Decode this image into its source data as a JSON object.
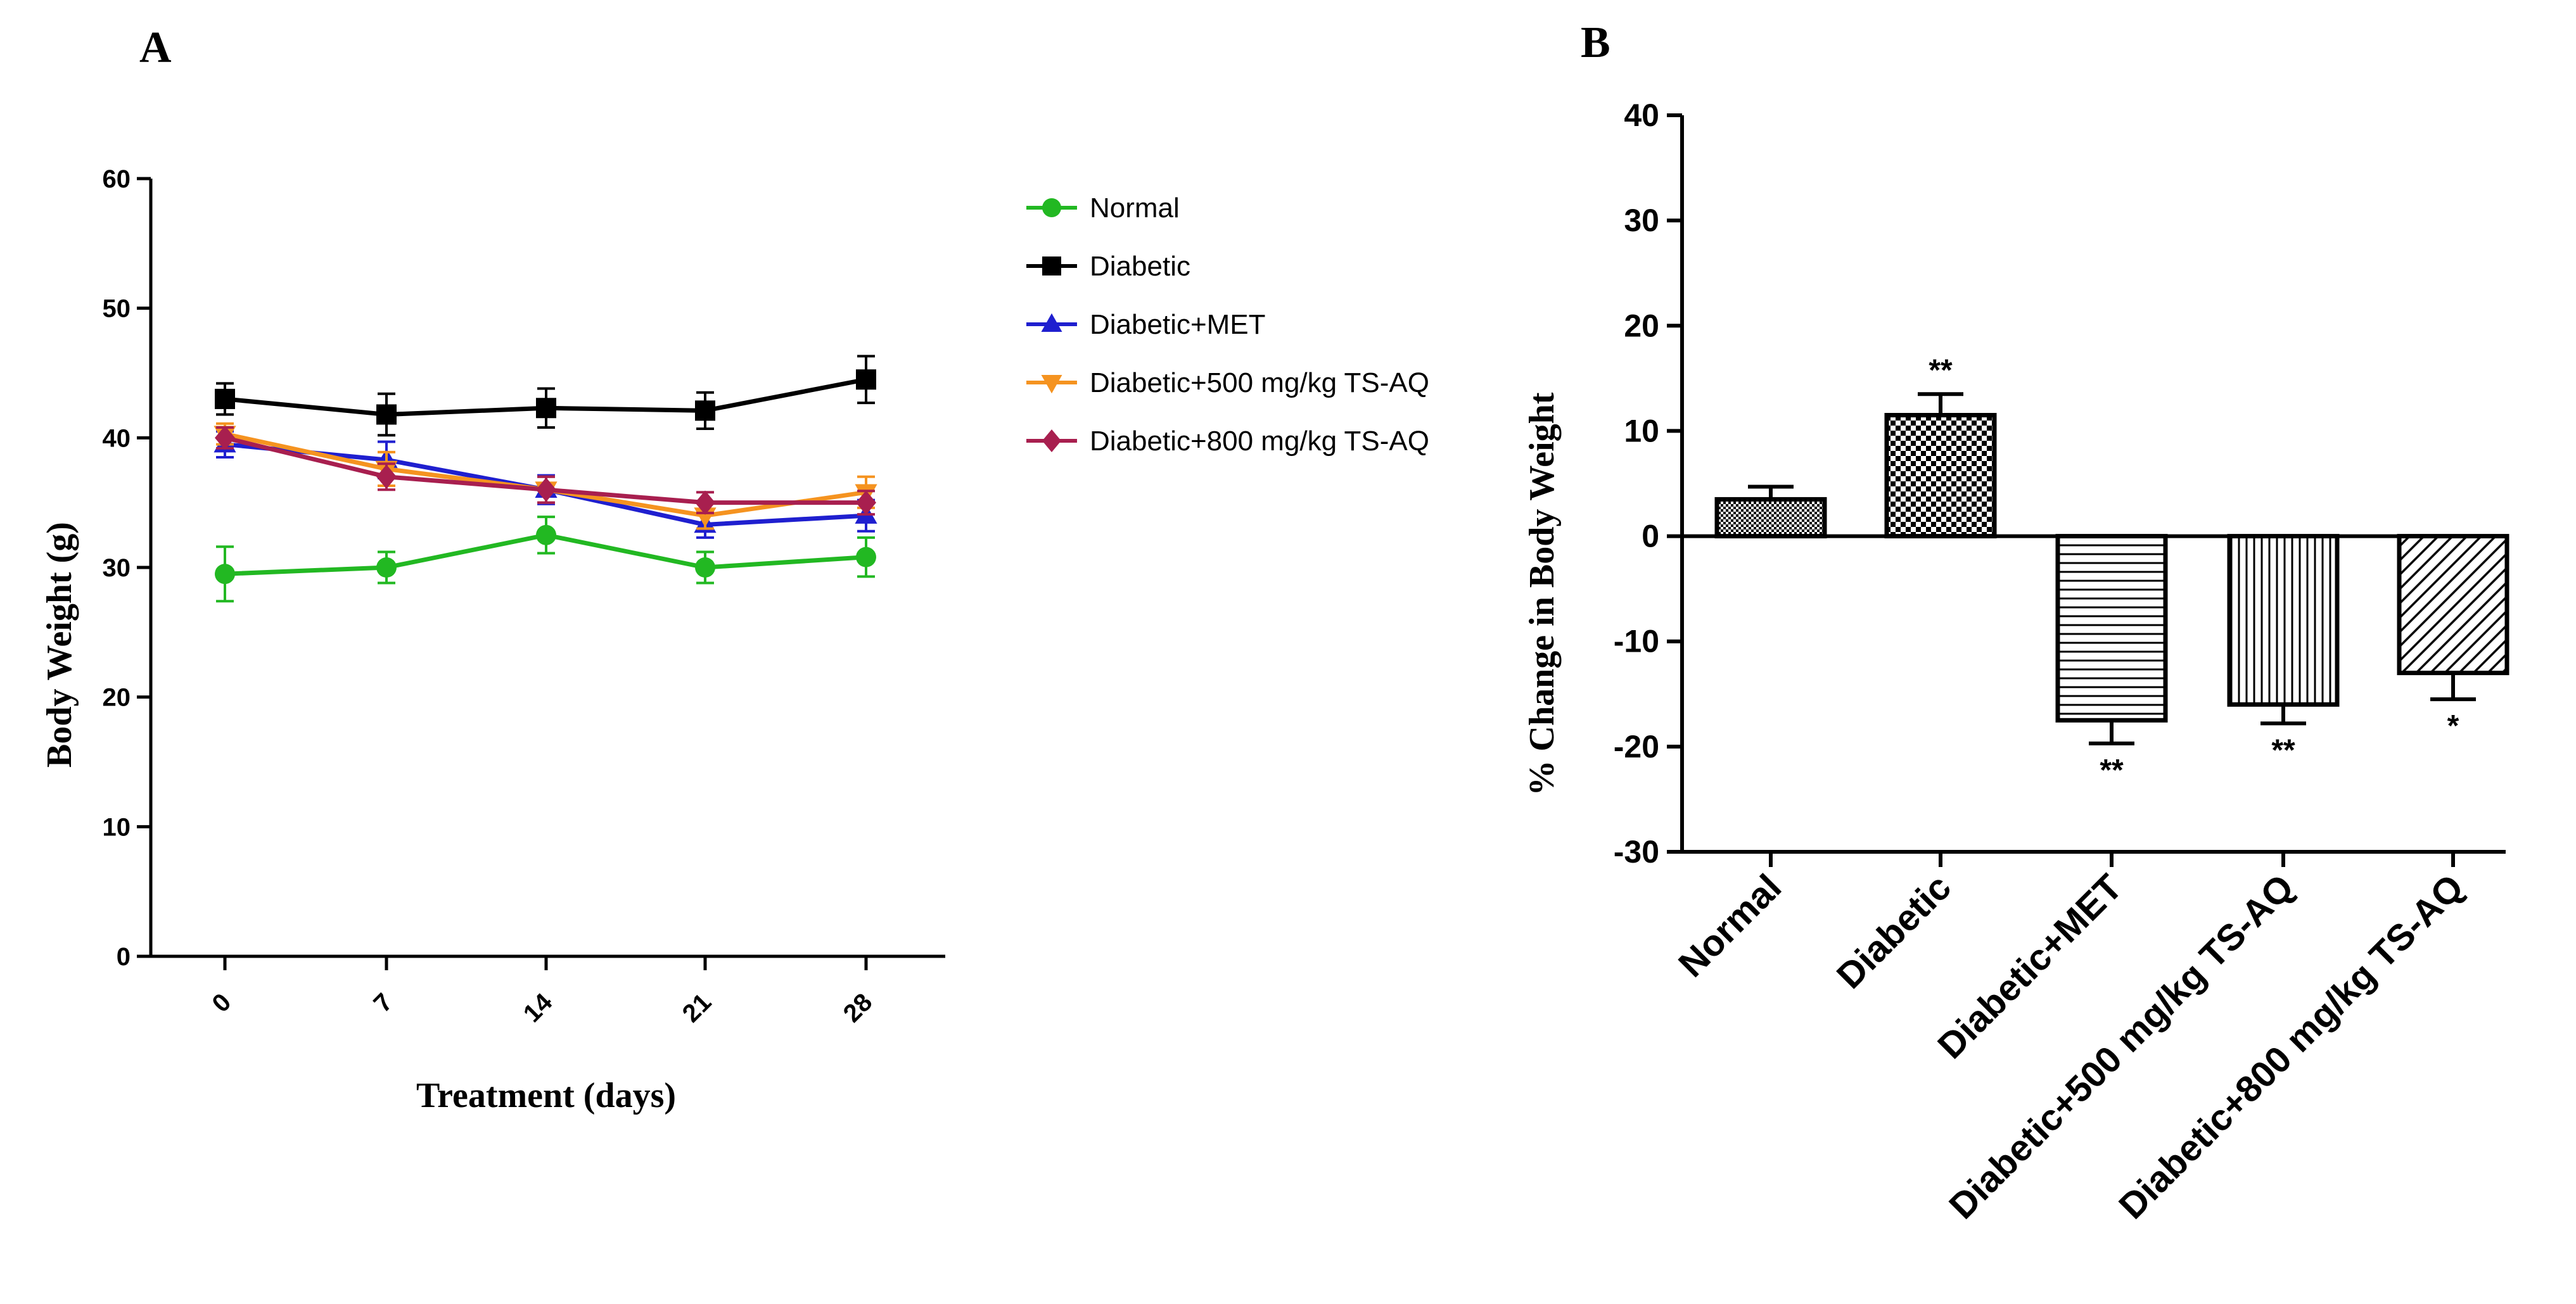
{
  "chart_data": [
    {
      "type": "line",
      "panel_label": "A",
      "title": "",
      "xlabel": "Treatment (days)",
      "ylabel": "Body Weight (g)",
      "x": [
        0,
        7,
        14,
        21,
        28
      ],
      "x_tick_labels": [
        "0",
        "7",
        "14",
        "21",
        "28"
      ],
      "ylim": [
        0,
        60
      ],
      "y_ticks": [
        0,
        10,
        20,
        30,
        40,
        50,
        60
      ],
      "grid": false,
      "legend_position": "right",
      "series": [
        {
          "name": "Normal",
          "color": "#22b822",
          "marker": "circle",
          "values": [
            29.5,
            30.0,
            32.5,
            30.0,
            30.8
          ],
          "errors": [
            2.1,
            1.2,
            1.4,
            1.2,
            1.5
          ]
        },
        {
          "name": "Diabetic",
          "color": "#000000",
          "marker": "square",
          "values": [
            43.0,
            41.8,
            42.3,
            42.1,
            44.5
          ],
          "errors": [
            1.2,
            1.6,
            1.5,
            1.4,
            1.8
          ]
        },
        {
          "name": "Diabetic+MET",
          "color": "#1f1fcf",
          "marker": "triangle-up",
          "values": [
            39.5,
            38.3,
            36.0,
            33.3,
            34.0
          ],
          "errors": [
            1.0,
            1.4,
            1.1,
            1.0,
            1.2
          ]
        },
        {
          "name": "Diabetic+500 mg/kg TS-AQ",
          "color": "#f59320",
          "marker": "triangle-down",
          "values": [
            40.3,
            37.6,
            36.0,
            34.0,
            35.8
          ],
          "errors": [
            0.8,
            1.3,
            1.0,
            1.0,
            1.2
          ]
        },
        {
          "name": "Diabetic+800 mg/kg TS-AQ",
          "color": "#a81f4f",
          "marker": "diamond",
          "values": [
            40.0,
            37.0,
            36.0,
            35.0,
            35.0
          ],
          "errors": [
            0.8,
            1.0,
            1.0,
            0.8,
            0.9
          ]
        }
      ]
    },
    {
      "type": "bar",
      "panel_label": "B",
      "title": "",
      "xlabel": "",
      "ylabel": "% Change in Body Weight",
      "categories": [
        "Normal",
        "Diabetic",
        "Diabetic+MET",
        "Diabetic+500 mg/kg TS-AQ",
        "Diabetic+800 mg/kg TS-AQ"
      ],
      "values": [
        3.5,
        11.5,
        -17.5,
        -16.0,
        -13.0
      ],
      "errors": [
        1.2,
        2.0,
        2.2,
        1.8,
        2.5
      ],
      "patterns": [
        "fine-checker",
        "checker",
        "horizontal-lines",
        "vertical-lines",
        "diagonal-lines"
      ],
      "annotations": [
        "",
        "**",
        "**",
        "**",
        "*"
      ],
      "ylim": [
        -30,
        40
      ],
      "y_ticks": [
        -30,
        -20,
        -10,
        0,
        10,
        20,
        30,
        40
      ],
      "grid": false
    }
  ]
}
